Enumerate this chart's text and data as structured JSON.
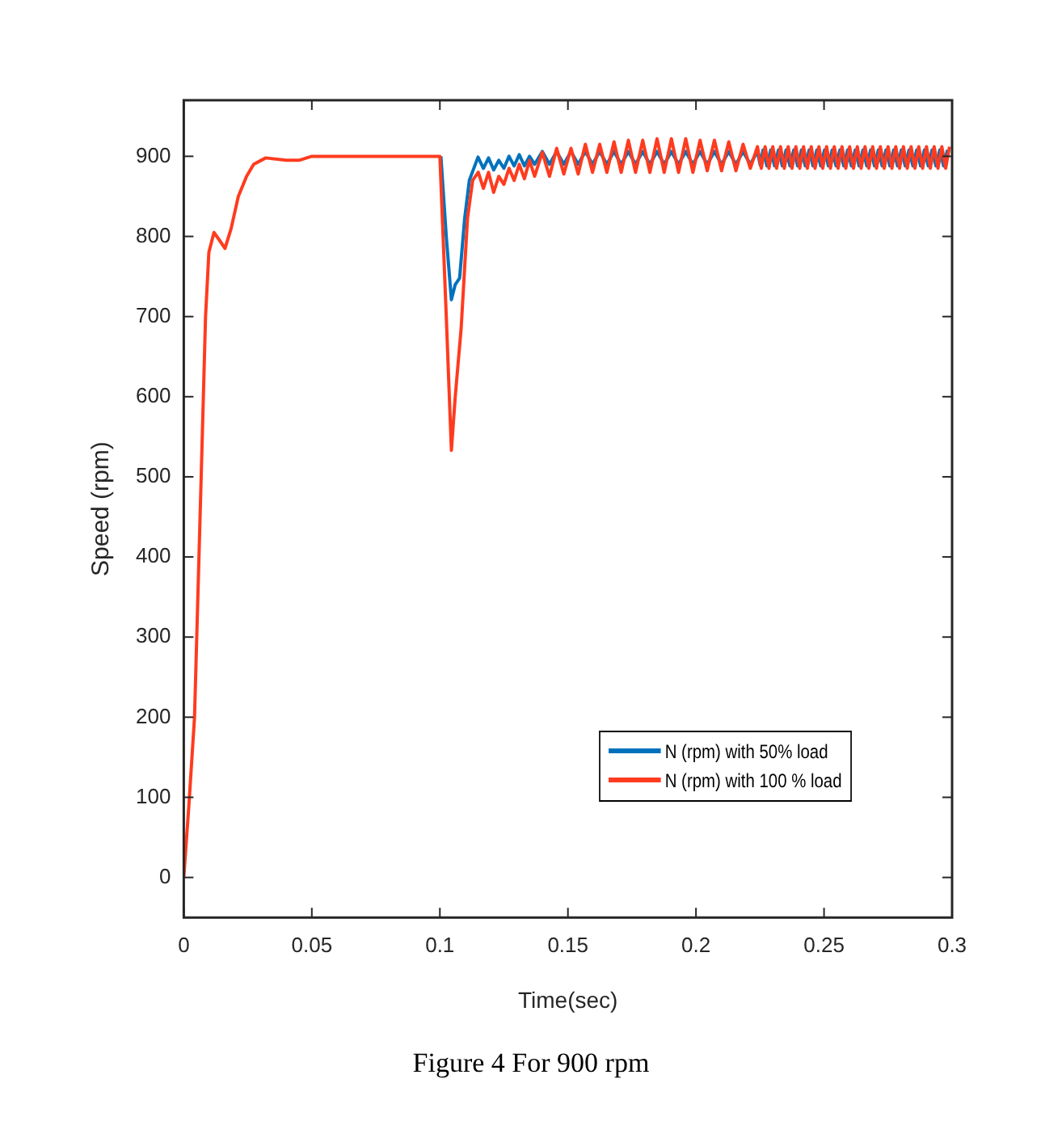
{
  "chart_data": {
    "type": "line",
    "xlabel": "Time(sec)",
    "ylabel": "Speed (rpm)",
    "annotations": [
      "Figure 4 For 900 rpm"
    ],
    "xlim": [
      0,
      0.3
    ],
    "xticks": [
      0,
      0.05,
      0.1,
      0.15,
      0.2,
      0.25,
      0.3
    ],
    "ylim": [
      -50,
      970
    ],
    "yticks": [
      0,
      100,
      200,
      300,
      400,
      500,
      600,
      700,
      800,
      900
    ],
    "grid": false,
    "legend": "bottom right",
    "marker": "none",
    "line_style": "solid",
    "series": [
      {
        "name": "N (rpm) with 50% load",
        "color": "#0072bd",
        "x": [
          0.1004,
          0.1025,
          0.1045,
          0.106,
          0.1077,
          0.1097,
          0.1115,
          0.1149,
          0.117,
          0.119,
          0.121,
          0.123,
          0.125,
          0.127,
          0.129,
          0.131,
          0.133,
          0.135,
          0.137,
          0.14,
          0.1428,
          0.1456,
          0.1484,
          0.1512,
          0.154,
          0.1568,
          0.1596,
          0.1624,
          0.1652,
          0.168,
          0.1708,
          0.1736,
          0.1764,
          0.1792,
          0.182,
          0.1848,
          0.1876,
          0.1904,
          0.1932,
          0.196,
          0.1988,
          0.2016,
          0.2044,
          0.2072,
          0.21,
          0.2128,
          0.2156,
          0.2184,
          0.2212,
          0.224,
          0.2251,
          0.2262,
          0.2277,
          0.2292,
          0.2307,
          0.2322,
          0.2337,
          0.2352,
          0.2367,
          0.2382,
          0.2397,
          0.2412,
          0.2427,
          0.2442,
          0.2457,
          0.2472,
          0.2487,
          0.2502,
          0.2517,
          0.2532,
          0.2547,
          0.2562,
          0.2577,
          0.2592,
          0.2607,
          0.2622,
          0.2637,
          0.2652,
          0.2667,
          0.2682,
          0.2697,
          0.2712,
          0.2727,
          0.2742,
          0.2757,
          0.2772,
          0.2787,
          0.2802,
          0.2817,
          0.2832,
          0.2847,
          0.2862,
          0.2877,
          0.2892,
          0.2907,
          0.2922,
          0.2937,
          0.2952,
          0.2967,
          0.2982
        ],
        "values": [
          900,
          800,
          721,
          740,
          748,
          823,
          870,
          899,
          885,
          898,
          883,
          895,
          885,
          900,
          888,
          902,
          888,
          900,
          890,
          906,
          890,
          906,
          890,
          906,
          890,
          906,
          890,
          906,
          890,
          906,
          890,
          906,
          890,
          906,
          890,
          906,
          890,
          906,
          890,
          906,
          890,
          906,
          890,
          906,
          890,
          906,
          890,
          906,
          890,
          906,
          889,
          908,
          888,
          908,
          888,
          908,
          888,
          908,
          888,
          908,
          888,
          908,
          888,
          908,
          888,
          908,
          888,
          908,
          888,
          908,
          888,
          908,
          888,
          908,
          888,
          908,
          888,
          908,
          888,
          908,
          888,
          908,
          888,
          908,
          888,
          908,
          888,
          908,
          888,
          908,
          888,
          908,
          888,
          908,
          888,
          908,
          888,
          908,
          888,
          908
        ]
      },
      {
        "name": "N (rpm) with 100 % load",
        "color": "#ff3b1f",
        "x": [
          0,
          0.002,
          0.0042,
          0.0068,
          0.0085,
          0.0098,
          0.0118,
          0.014,
          0.0161,
          0.0185,
          0.0213,
          0.0245,
          0.0273,
          0.032,
          0.04,
          0.045,
          0.05,
          0.06,
          0.07,
          0.08,
          0.09,
          0.1,
          0.1004,
          0.1025,
          0.1045,
          0.106,
          0.1083,
          0.1108,
          0.1128,
          0.115,
          0.117,
          0.119,
          0.121,
          0.123,
          0.125,
          0.127,
          0.129,
          0.131,
          0.133,
          0.135,
          0.137,
          0.14,
          0.1428,
          0.1456,
          0.1484,
          0.1512,
          0.154,
          0.1568,
          0.1596,
          0.1624,
          0.1652,
          0.168,
          0.1708,
          0.1736,
          0.1764,
          0.1792,
          0.182,
          0.1848,
          0.1876,
          0.1904,
          0.1932,
          0.196,
          0.1988,
          0.2016,
          0.2044,
          0.2072,
          0.21,
          0.2128,
          0.2156,
          0.2184,
          0.2212,
          0.224,
          0.2255,
          0.227,
          0.2285,
          0.23,
          0.2315,
          0.233,
          0.2345,
          0.236,
          0.2375,
          0.239,
          0.2405,
          0.242,
          0.2435,
          0.245,
          0.2465,
          0.248,
          0.2495,
          0.251,
          0.2525,
          0.254,
          0.2555,
          0.257,
          0.2585,
          0.26,
          0.2615,
          0.263,
          0.2645,
          0.266,
          0.2675,
          0.269,
          0.2705,
          0.272,
          0.2735,
          0.275,
          0.2765,
          0.278,
          0.2795,
          0.281,
          0.2825,
          0.284,
          0.2855,
          0.287,
          0.2885,
          0.29,
          0.2915,
          0.293,
          0.2945,
          0.296,
          0.2975,
          0.299
        ],
        "values": [
          0,
          90,
          200,
          500,
          700,
          780,
          805,
          795,
          785,
          810,
          850,
          875,
          890,
          898,
          895,
          895,
          900,
          900,
          900,
          900,
          900,
          900,
          900,
          700,
          533,
          600,
          685,
          823,
          870,
          880,
          860,
          880,
          855,
          875,
          865,
          885,
          870,
          890,
          872,
          895,
          875,
          905,
          875,
          910,
          878,
          910,
          878,
          915,
          880,
          915,
          880,
          918,
          880,
          920,
          880,
          920,
          880,
          922,
          880,
          922,
          880,
          922,
          880,
          920,
          882,
          920,
          882,
          918,
          882,
          915,
          885,
          912,
          885,
          912,
          885,
          912,
          885,
          912,
          885,
          912,
          885,
          912,
          885,
          912,
          885,
          912,
          885,
          912,
          885,
          912,
          885,
          912,
          885,
          912,
          885,
          912,
          885,
          912,
          885,
          912,
          885,
          912,
          885,
          912,
          885,
          912,
          885,
          912,
          885,
          912,
          885,
          912,
          885,
          912,
          885,
          912,
          885,
          912,
          885,
          912,
          885,
          912
        ]
      }
    ]
  }
}
